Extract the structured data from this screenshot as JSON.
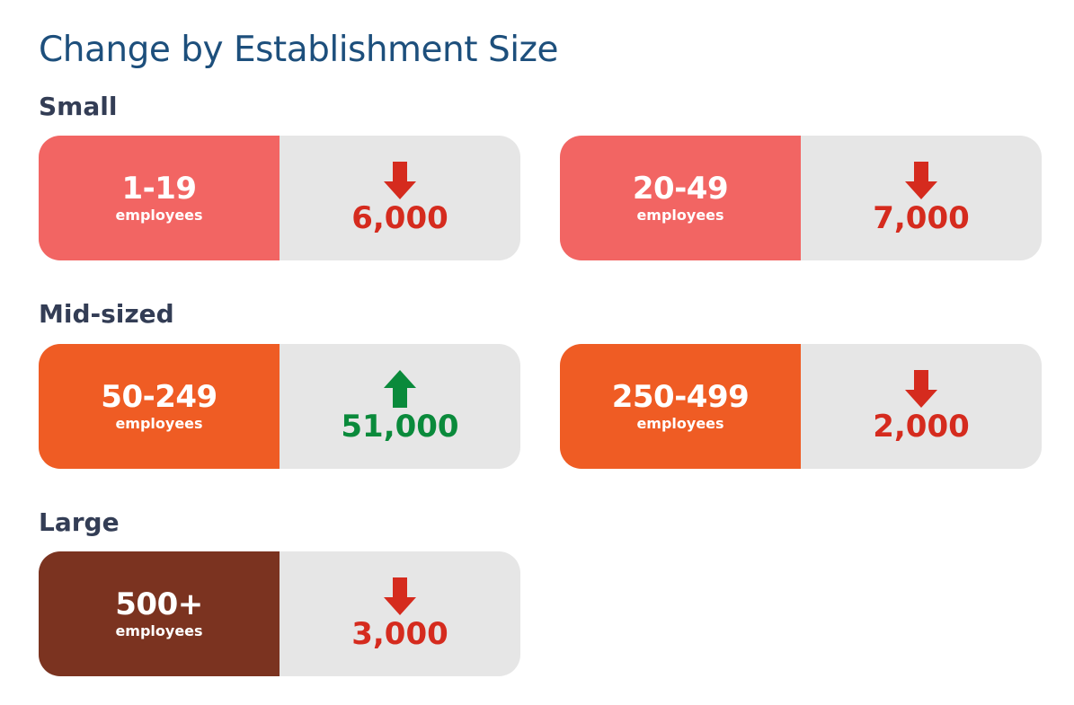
{
  "title": "Change by Establishment Size",
  "colors": {
    "small": "#f26563",
    "mid": "#ef5c24",
    "large": "#7b3320",
    "down": "#d52b1e",
    "up": "#0a8a3b",
    "panel": "#e6e6e6"
  },
  "groups": [
    {
      "label": "Small"
    },
    {
      "label": "Mid-sized"
    },
    {
      "label": "Large"
    }
  ],
  "unit_label": "employees",
  "chart_data": {
    "type": "table",
    "title": "Change by Establishment Size",
    "columns": [
      "group",
      "establishment_size",
      "direction",
      "change"
    ],
    "rows": [
      {
        "group": "Small",
        "size": "1-19",
        "direction": "down",
        "value": "6,000",
        "change": -6000
      },
      {
        "group": "Small",
        "size": "20-49",
        "direction": "down",
        "value": "7,000",
        "change": -7000
      },
      {
        "group": "Mid-sized",
        "size": "50-249",
        "direction": "up",
        "value": "51,000",
        "change": 51000
      },
      {
        "group": "Mid-sized",
        "size": "250-499",
        "direction": "down",
        "value": "2,000",
        "change": -2000
      },
      {
        "group": "Large",
        "size": "500+",
        "direction": "down",
        "value": "3,000",
        "change": -3000
      }
    ]
  }
}
